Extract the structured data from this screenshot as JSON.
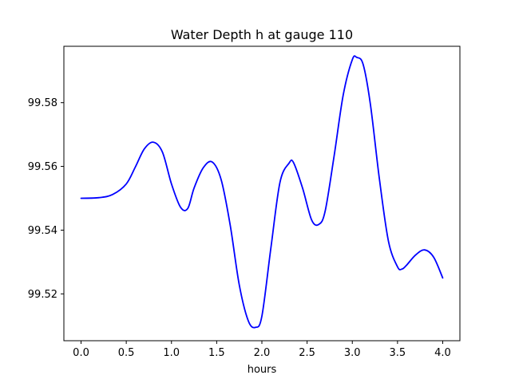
{
  "chart_data": {
    "type": "line",
    "title": "Water Depth h at gauge 110",
    "xlabel": "hours",
    "ylabel": "",
    "xlim": [
      -0.19,
      4.19
    ],
    "ylim": [
      99.5053,
      99.5977
    ],
    "x_ticks": [
      0.0,
      0.5,
      1.0,
      1.5,
      2.0,
      2.5,
      3.0,
      3.5,
      4.0
    ],
    "x_tick_labels": [
      "0.0",
      "0.5",
      "1.0",
      "1.5",
      "2.0",
      "2.5",
      "3.0",
      "3.5",
      "4.0"
    ],
    "y_ticks": [
      99.52,
      99.54,
      99.56,
      99.58
    ],
    "y_tick_labels": [
      "99.52",
      "99.54",
      "99.56",
      "99.58"
    ],
    "grid": false,
    "colors": {
      "line": "#0000ff",
      "axes": "#000000",
      "background": "#ffffff"
    },
    "series": [
      {
        "x": [
          0.0,
          0.2,
          0.35,
          0.5,
          0.6,
          0.7,
          0.8,
          0.9,
          1.0,
          1.1,
          1.18,
          1.25,
          1.35,
          1.45,
          1.55,
          1.65,
          1.75,
          1.85,
          1.93,
          2.0,
          2.1,
          2.2,
          2.3,
          2.35,
          2.45,
          2.55,
          2.63,
          2.7,
          2.8,
          2.9,
          3.0,
          3.05,
          3.12,
          3.2,
          3.3,
          3.4,
          3.5,
          3.55,
          3.6,
          3.7,
          3.8,
          3.9,
          4.0
        ],
        "y": [
          99.55,
          99.5502,
          99.5512,
          99.5545,
          99.5598,
          99.5655,
          99.5676,
          99.5645,
          99.5545,
          99.5472,
          99.5468,
          99.5532,
          99.5595,
          99.5614,
          99.5558,
          99.5415,
          99.5228,
          99.5115,
          99.5095,
          99.513,
          99.5345,
          99.555,
          99.561,
          99.5612,
          99.5532,
          99.5432,
          99.5418,
          99.546,
          99.5635,
          99.5825,
          99.5935,
          99.5942,
          99.592,
          99.5795,
          99.556,
          99.5365,
          99.5285,
          99.5278,
          99.529,
          99.5322,
          99.5338,
          99.5315,
          99.525
        ]
      }
    ]
  }
}
